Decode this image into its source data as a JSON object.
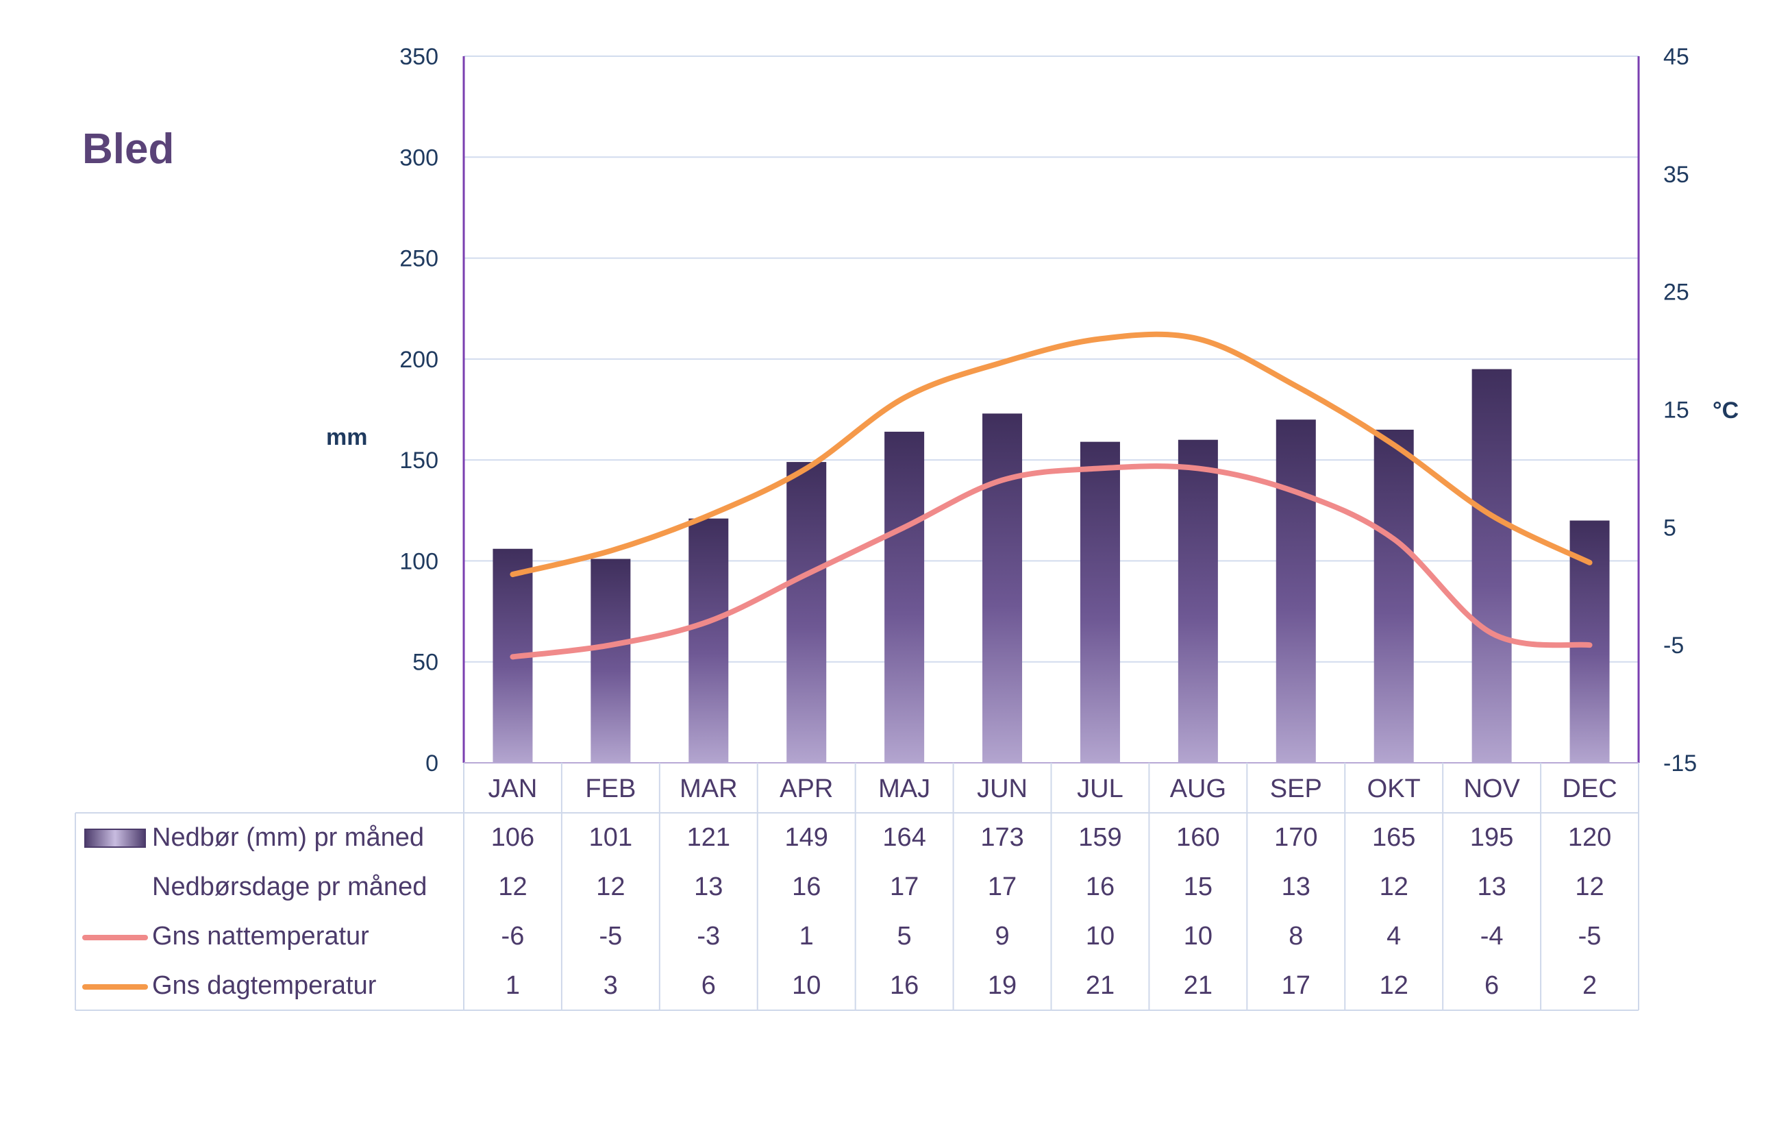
{
  "chart_data": {
    "type": "bar",
    "title": "Bled",
    "categories": [
      "JAN",
      "FEB",
      "MAR",
      "APR",
      "MAJ",
      "JUN",
      "JUL",
      "AUG",
      "SEP",
      "OKT",
      "NOV",
      "DEC"
    ],
    "left_axis": {
      "unit": "mm",
      "ylim": [
        0,
        350
      ],
      "ticks": [
        "0",
        "50",
        "100",
        "150",
        "200",
        "250",
        "300",
        "350"
      ]
    },
    "right_axis": {
      "unit": "°C",
      "ylim": [
        -15,
        45
      ],
      "ticks": [
        "-15",
        "-5",
        "5",
        "15",
        "25",
        "35",
        "45"
      ]
    },
    "grid": true,
    "series": [
      {
        "name": "Nedbør (mm) pr måned",
        "kind": "bar",
        "axis": "left",
        "color": "#4b3a6a",
        "values": [
          106,
          101,
          121,
          149,
          164,
          173,
          159,
          160,
          170,
          165,
          195,
          120
        ]
      },
      {
        "name": "Nedbørsdage pr måned",
        "kind": "table-only",
        "values": [
          12,
          12,
          13,
          16,
          17,
          17,
          16,
          15,
          13,
          12,
          13,
          12
        ]
      },
      {
        "name": "Gns nattemperatur",
        "kind": "line",
        "axis": "right",
        "color": "#f08a8a",
        "values": [
          -6,
          -5,
          -3,
          1,
          5,
          9,
          10,
          10,
          8,
          4,
          -4,
          -5
        ]
      },
      {
        "name": "Gns dagtemperatur",
        "kind": "line",
        "axis": "right",
        "color": "#f5994a",
        "values": [
          1,
          3,
          6,
          10,
          16,
          19,
          21,
          21,
          17,
          12,
          6,
          2
        ]
      }
    ]
  }
}
